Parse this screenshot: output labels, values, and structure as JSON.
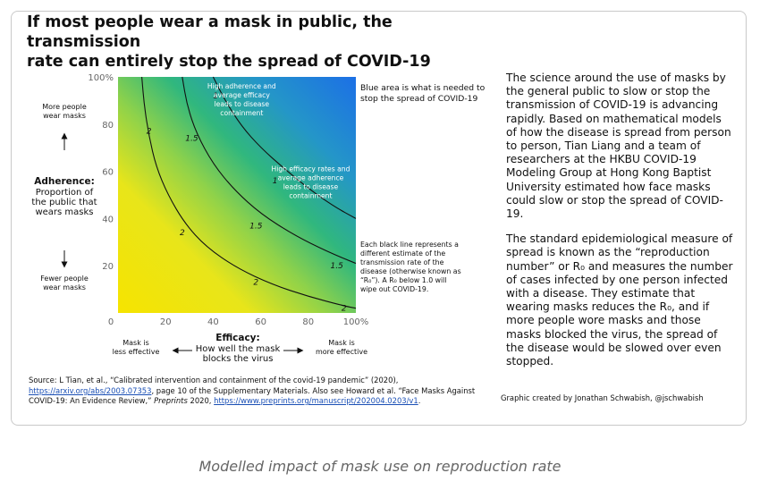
{
  "title": "If most people wear a mask in public, the transmission\nrate can entirely stop the spread of COVID-19",
  "chart_data": {
    "type": "heatmap",
    "x": {
      "label_title": "Efficacy:",
      "label_sub": [
        "How well the mask",
        "blocks the virus"
      ],
      "ticks": [
        0,
        20,
        40,
        60,
        80,
        100
      ],
      "tick_labels": [
        "0",
        "20",
        "40",
        "60",
        "80",
        "100%"
      ],
      "range": [
        0,
        100
      ],
      "left_note": [
        "Mask is",
        "less effective"
      ],
      "right_note": [
        "Mask is",
        "more effective"
      ]
    },
    "y": {
      "label_title": "Adherence:",
      "label_sub": [
        "Proportion of",
        "the public that",
        "wears masks"
      ],
      "ticks": [
        20,
        40,
        60,
        80,
        100
      ],
      "tick_labels": [
        "20",
        "40",
        "60",
        "80",
        "100%"
      ],
      "range": [
        0,
        100
      ],
      "top_note": [
        "More people",
        "wear masks"
      ],
      "bottom_note": [
        "Fewer people",
        "wear masks"
      ]
    },
    "contours": [
      {
        "label": "2",
        "points": [
          [
            10,
            100
          ],
          [
            11,
            88
          ],
          [
            13,
            75
          ],
          [
            16,
            62
          ],
          [
            21,
            50
          ],
          [
            28,
            38
          ],
          [
            37,
            28
          ],
          [
            50,
            19
          ],
          [
            65,
            12
          ],
          [
            80,
            7
          ],
          [
            95,
            3
          ],
          [
            100,
            2
          ]
        ],
        "label_positions": [
          [
            13,
            77
          ],
          [
            27,
            34
          ],
          [
            58,
            13
          ],
          [
            95,
            2
          ]
        ]
      },
      {
        "label": "1.5",
        "points": [
          [
            27,
            100
          ],
          [
            29,
            88
          ],
          [
            33,
            76
          ],
          [
            40,
            63
          ],
          [
            49,
            52
          ],
          [
            60,
            42
          ],
          [
            74,
            33
          ],
          [
            88,
            26
          ],
          [
            100,
            21
          ]
        ],
        "label_positions": [
          [
            31,
            74
          ],
          [
            58,
            37
          ],
          [
            92,
            20
          ]
        ]
      },
      {
        "label": "1",
        "points": [
          [
            40,
            100
          ],
          [
            45,
            90
          ],
          [
            52,
            79
          ],
          [
            60,
            70
          ],
          [
            70,
            61
          ],
          [
            81,
            52
          ],
          [
            91,
            45
          ],
          [
            100,
            40
          ]
        ],
        "label_positions": [
          [
            41,
            92
          ],
          [
            66,
            56
          ]
        ]
      }
    ],
    "annotations": [
      {
        "text": [
          "High adherence and",
          "average efficacy",
          "leads to disease",
          "containment"
        ],
        "x": 52,
        "y": 95
      },
      {
        "text": [
          "High efficacy rates and",
          "average adherence",
          "leads to disease",
          "containment"
        ],
        "x": 81,
        "y": 60
      }
    ],
    "side_notes": {
      "top": [
        "Blue area is what is needed to",
        "stop the spread of COVID-19"
      ],
      "lines": [
        "Each black line represents a",
        "different estimate of the",
        "transmission rate of the",
        "disease (otherwise known as",
        "“R₀”). A R₀ below 1.0 will",
        "wipe out COVID-19."
      ]
    },
    "colors": {
      "low": "#f2e600",
      "mid": "#86d14f",
      "green": "#2bb583",
      "high": "#1f7de0",
      "contour": "#111111"
    }
  },
  "body": {
    "p1": "The science around the use of masks by the general public to slow or stop the transmission of COVID-19 is advancing rapidly. Based on mathematical models of how the disease is spread from person to person, Tian Liang and a team of researchers at the HKBU COVID-19 Modeling Group at Hong Kong Baptist University estimated how face masks could slow or stop the spread of COVID-19.",
    "p2": "The standard epidemiological measure of spread is known as the “reproduction number” or R₀ and measures the number of cases infected by one person infected with a disease. They estimate that wearing masks reduces the R₀, and if more people wore masks and those masks blocked the virus, the spread of the disease would be slowed over even stopped."
  },
  "source": {
    "prefix": "Source: L Tian, et al., “Calibrated intervention and containment of the covid-19 pandemic” (2020),",
    "link1": "https://arxiv.org/abs/2003.07353",
    "mid": ", page 10 of the Supplementary Materials. Also see Howard et al. “Face Masks Against COVID-19: An Evidence Review,”",
    "journal": " Preprints",
    "year": " 2020, ",
    "link2": "https://www.preprints.org/manuscript/202004.0203/v1",
    "end": "."
  },
  "credit": "Graphic created by Jonathan Schwabish, @jschwabish",
  "caption": "Modelled impact of mask use on reproduction rate"
}
